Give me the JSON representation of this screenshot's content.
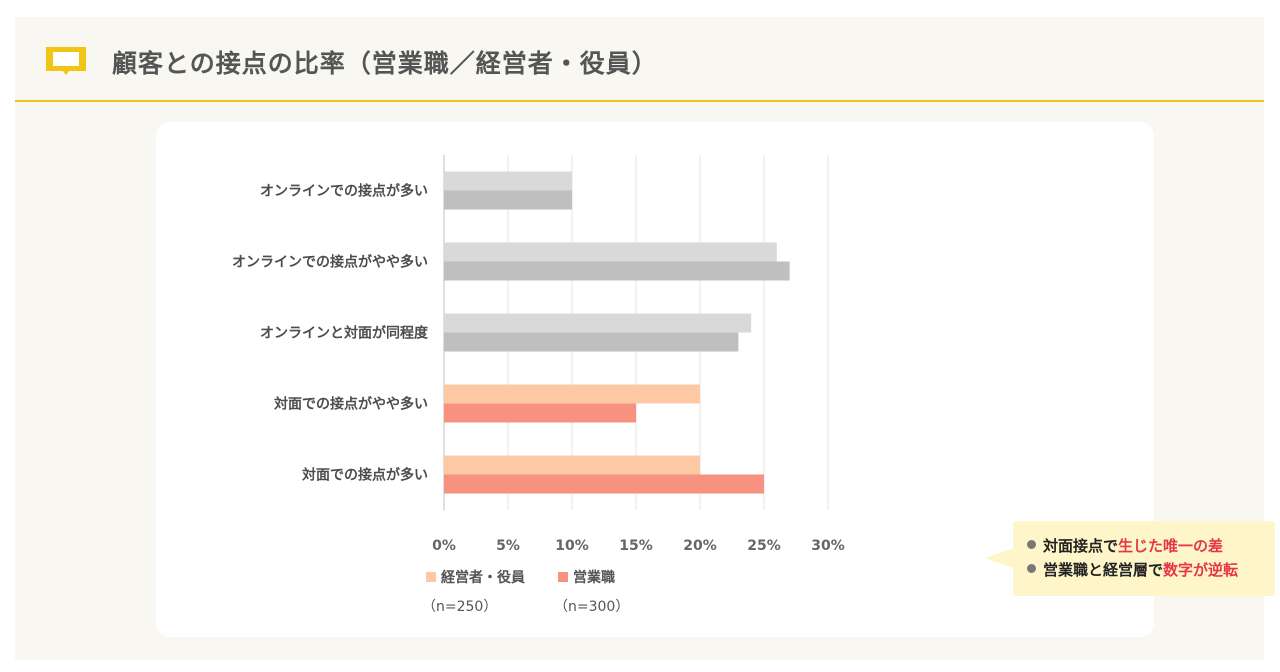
{
  "header": {
    "title": "顧客との接点の比率（営業職／経営者・役員）",
    "icon": "book-icon",
    "accent_color": "#f2c414"
  },
  "chart_data": {
    "type": "bar",
    "orientation": "horizontal",
    "categories": [
      "オンラインでの接点が多い",
      "オンラインでの接点がやや多い",
      "オンラインと対面が同程度",
      "対面での接点がやや多い",
      "対面での接点が多い"
    ],
    "series": [
      {
        "name": "経営者・役員",
        "legend_label": "経営者・役員",
        "sample": "（n=250）",
        "values": [
          10,
          26,
          24,
          20,
          20
        ],
        "colors": [
          "#d9d9d9",
          "#d9d9d9",
          "#d9d9d9",
          "#fdc9a4",
          "#fdc9a4"
        ]
      },
      {
        "name": "営業職",
        "legend_label": "営業職",
        "sample": "（n=300）",
        "values": [
          10,
          27,
          23,
          15,
          25
        ],
        "colors": [
          "#bfbfbf",
          "#bfbfbf",
          "#bfbfbf",
          "#f79180",
          "#f79180"
        ]
      }
    ],
    "xlim": [
      0,
      30
    ],
    "xticks": [
      0,
      5,
      10,
      15,
      20,
      25,
      30
    ],
    "xtick_labels": [
      "0%",
      "5%",
      "10%",
      "15%",
      "20%",
      "25%",
      "30%"
    ],
    "legend_colors": [
      "#fdc9a4",
      "#f79180"
    ],
    "grid": true,
    "legend_position": "bottom-left"
  },
  "callout": {
    "lines": [
      {
        "prefix": "対面接点で",
        "highlight": "生じた唯一の差"
      },
      {
        "prefix": "営業職と経営層で",
        "highlight": "数字が逆転"
      }
    ],
    "highlight_color": "#e5364a"
  }
}
